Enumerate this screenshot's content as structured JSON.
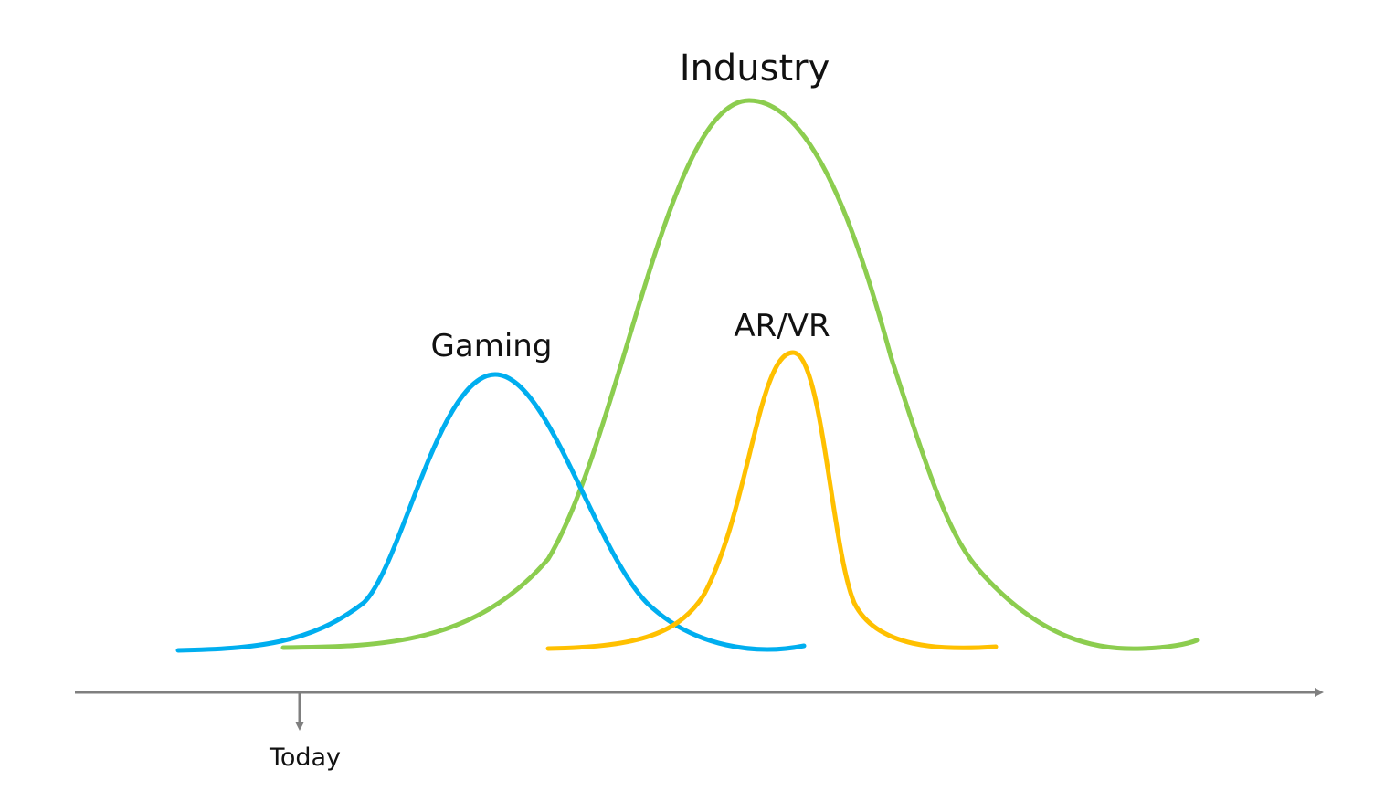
{
  "labels": {
    "industry": "Industry",
    "arvr": "AR/VR",
    "gaming": "Gaming",
    "today": "Today"
  },
  "colors": {
    "industry": "#8ccd4f",
    "arvr": "#ffc000",
    "gaming": "#00aeef",
    "axis": "#7f7f7f"
  }
}
